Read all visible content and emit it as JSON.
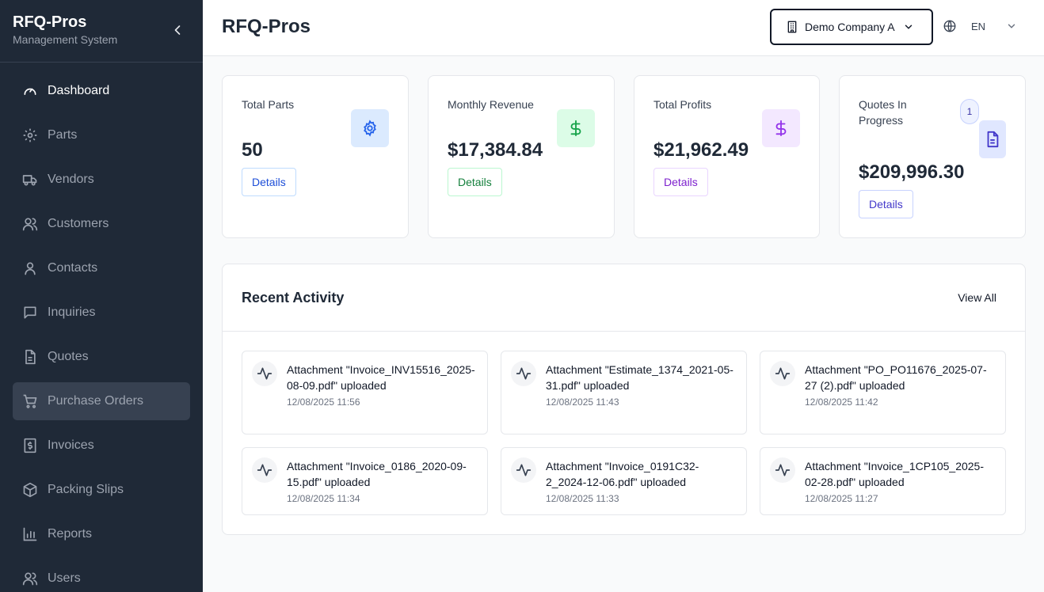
{
  "sidebar": {
    "title": "RFQ-Pros",
    "subtitle": "Management System",
    "items": [
      {
        "label": "Dashboard",
        "icon": "dashboard-gauge-icon"
      },
      {
        "label": "Parts",
        "icon": "gear-icon"
      },
      {
        "label": "Vendors",
        "icon": "truck-icon"
      },
      {
        "label": "Customers",
        "icon": "users-icon"
      },
      {
        "label": "Contacts",
        "icon": "user-icon"
      },
      {
        "label": "Inquiries",
        "icon": "message-icon"
      },
      {
        "label": "Quotes",
        "icon": "file-icon"
      },
      {
        "label": "Purchase Orders",
        "icon": "cart-icon"
      },
      {
        "label": "Invoices",
        "icon": "receipt-dollar-icon"
      },
      {
        "label": "Packing Slips",
        "icon": "package-icon"
      },
      {
        "label": "Reports",
        "icon": "bar-chart-icon"
      },
      {
        "label": "Users",
        "icon": "users-icon"
      }
    ]
  },
  "header": {
    "title": "RFQ-Pros",
    "company": "Demo Company A",
    "language": "EN"
  },
  "cards": [
    {
      "label": "Total Parts",
      "value": "50",
      "button": "Details",
      "color": "#2563eb",
      "bg": "#dbeafe"
    },
    {
      "label": "Monthly Revenue",
      "value": "$17,384.84",
      "button": "Details",
      "color": "#16a34a",
      "bg": "#dcfce7"
    },
    {
      "label": "Total Profits",
      "value": "$21,962.49",
      "button": "Details",
      "color": "#9333ea",
      "bg": "#f3e8ff"
    },
    {
      "label": "Quotes In Progress",
      "value": "$209,996.30",
      "button": "Details",
      "badge": "1",
      "color": "#4338ca",
      "bg": "#e0e7ff"
    }
  ],
  "activity": {
    "title": "Recent Activity",
    "view_all": "View All",
    "items": [
      {
        "text": "Attachment \"Invoice_INV15516_2025-08-09.pdf\" uploaded",
        "time": "12/08/2025 11:56"
      },
      {
        "text": "Attachment \"Estimate_1374_2021-05-31.pdf\" uploaded",
        "time": "12/08/2025 11:43"
      },
      {
        "text": "Attachment \"PO_PO11676_2025-07-27 (2).pdf\" uploaded",
        "time": "12/08/2025 11:42"
      },
      {
        "text": "Attachment \"Invoice_0186_2020-09-15.pdf\" uploaded",
        "time": "12/08/2025 11:34"
      },
      {
        "text": "Attachment \"Invoice_0191C32-2_2024-12-06.pdf\" uploaded",
        "time": "12/08/2025 11:33"
      },
      {
        "text": "Attachment \"Invoice_1CP105_2025-02-28.pdf\" uploaded",
        "time": "12/08/2025 11:27"
      }
    ]
  }
}
